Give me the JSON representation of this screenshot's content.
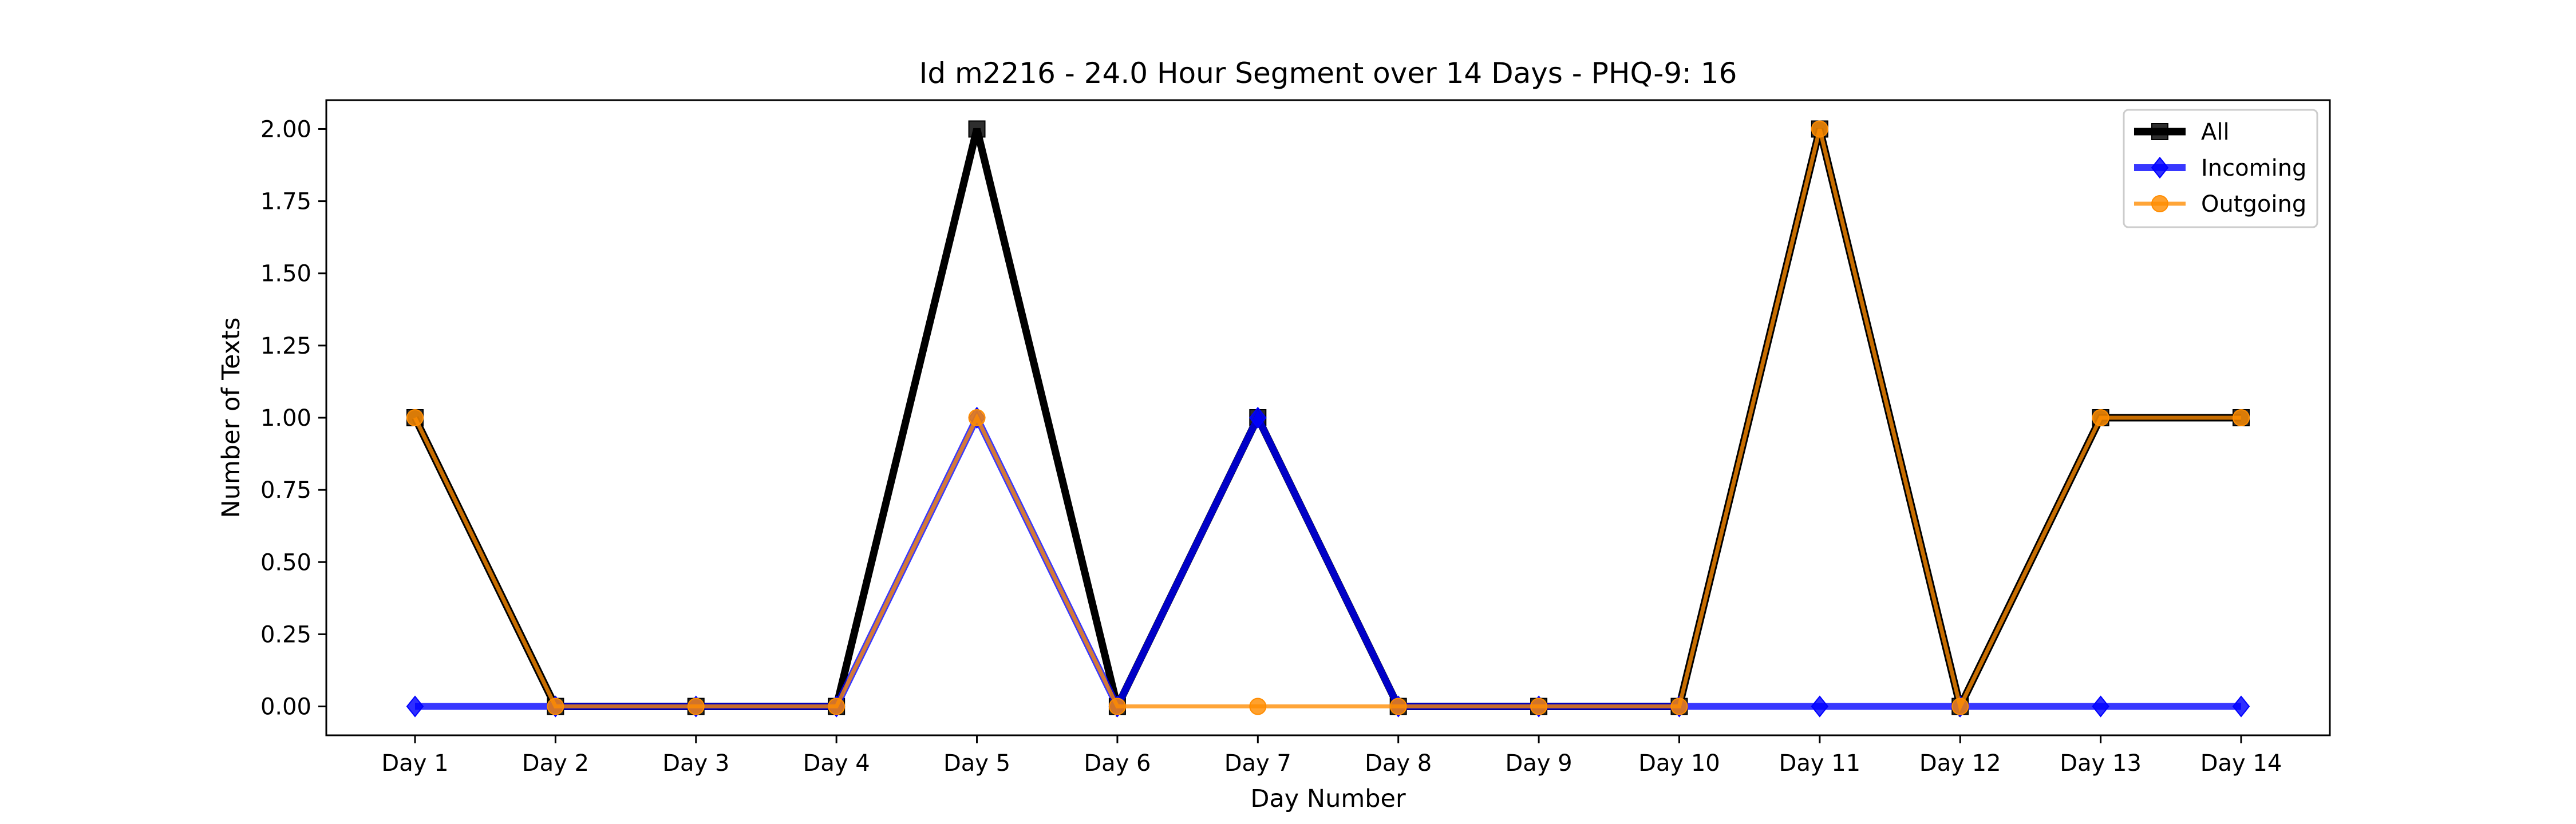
{
  "chart_data": {
    "type": "line",
    "title": "Id m2216 - 24.0 Hour Segment over 14 Days - PHQ-9: 16",
    "xlabel": "Day Number",
    "ylabel": "Number of Texts",
    "categories": [
      "Day 1",
      "Day 2",
      "Day 3",
      "Day 4",
      "Day 5",
      "Day 6",
      "Day 7",
      "Day 8",
      "Day 9",
      "Day 10",
      "Day 11",
      "Day 12",
      "Day 13",
      "Day 14"
    ],
    "ylim": [
      -0.1,
      2.1
    ],
    "yticks": [
      "0.00",
      "0.25",
      "0.50",
      "0.75",
      "1.00",
      "1.25",
      "1.50",
      "1.75",
      "2.00"
    ],
    "grid": false,
    "legend_position": "top-right",
    "series": [
      {
        "name": "All",
        "color": "#000000",
        "marker": "square",
        "values": [
          1,
          0,
          0,
          0,
          2,
          0,
          1,
          0,
          0,
          0,
          2,
          0,
          1,
          1
        ]
      },
      {
        "name": "Incoming",
        "color": "#0000ff",
        "marker": "diamond",
        "values": [
          0,
          0,
          0,
          0,
          1,
          0,
          1,
          0,
          0,
          0,
          0,
          0,
          0,
          0
        ]
      },
      {
        "name": "Outgoing",
        "color": "#ff8c00",
        "marker": "circle",
        "values": [
          1,
          0,
          0,
          0,
          1,
          0,
          0,
          0,
          0,
          0,
          2,
          0,
          1,
          1
        ]
      }
    ]
  }
}
